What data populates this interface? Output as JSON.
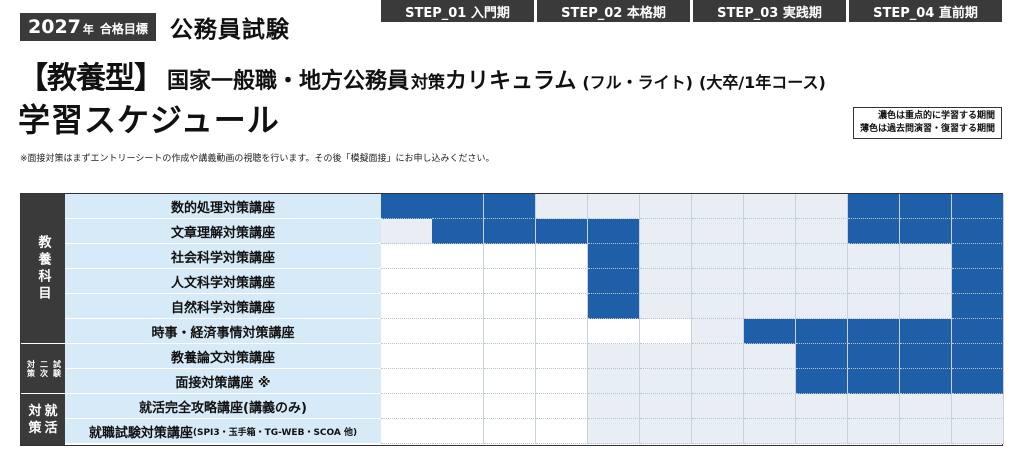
{
  "header": {
    "year": "2027",
    "year_suffix": "年",
    "pass_target": "合格目標",
    "exam_title": "公務員試験",
    "type_label": "【教養型】",
    "curriculum_main": "国家一般職・地方公務員",
    "curriculum_mid": "対策",
    "curriculum_end": "カリキュラム",
    "variant": "(フル・ライト)",
    "course_scope": "(大卒/1年コース)",
    "schedule_title": "学習スケジュール"
  },
  "legend": {
    "dark_text": "濃色は重点的に学習する期間",
    "light_text": "薄色は過去問演習・復習する期間"
  },
  "note": "※面接対策はまずエントリーシートの作成や講義動画の視聴を行います。その後「模擬面接」にお申し込みください。",
  "steps": [
    {
      "label": "STEP_01 入門期"
    },
    {
      "label": "STEP_02 本格期"
    },
    {
      "label": "STEP_03 実践期"
    },
    {
      "label": "STEP_04 直前期"
    }
  ],
  "categories": [
    {
      "main": "教養科目",
      "sub": ""
    },
    {
      "main": "二次試験",
      "sub": "対策"
    },
    {
      "main": "対就策活",
      "sub": ""
    }
  ],
  "category_labels": {
    "liberal": "教養科目",
    "second_a": "二次",
    "second_b": "試験",
    "second_side": "対策",
    "job_a": "対",
    "job_b": "就",
    "job_c": "策",
    "job_d": "活"
  },
  "courses": [
    {
      "name": "数的処理対策講座",
      "sub": "",
      "cells": [
        2,
        2,
        2,
        1,
        1,
        1,
        1,
        1,
        1,
        2,
        2,
        2
      ]
    },
    {
      "name": "文章理解対策講座",
      "sub": "",
      "cells": [
        1,
        2,
        2,
        2,
        2,
        1,
        1,
        1,
        1,
        2,
        2,
        2
      ]
    },
    {
      "name": "社会科学対策講座",
      "sub": "",
      "cells": [
        0,
        0,
        0,
        0,
        2,
        1,
        1,
        1,
        1,
        1,
        1,
        2
      ]
    },
    {
      "name": "人文科学対策講座",
      "sub": "",
      "cells": [
        0,
        0,
        0,
        0,
        2,
        1,
        1,
        1,
        1,
        1,
        1,
        2
      ]
    },
    {
      "name": "自然科学対策講座",
      "sub": "",
      "cells": [
        0,
        0,
        0,
        0,
        2,
        1,
        1,
        1,
        1,
        1,
        1,
        2
      ]
    },
    {
      "name": "時事・経済事情対策講座",
      "sub": "",
      "cells": [
        0,
        0,
        0,
        0,
        0,
        0,
        1,
        2,
        2,
        2,
        2,
        2
      ]
    },
    {
      "name": "教養論文対策講座",
      "sub": "",
      "cells": [
        0,
        0,
        0,
        0,
        1,
        1,
        1,
        1,
        2,
        2,
        2,
        2
      ]
    },
    {
      "name": "面接対策講座 ※",
      "sub": "",
      "cells": [
        0,
        0,
        0,
        0,
        1,
        1,
        1,
        1,
        2,
        2,
        2,
        2
      ]
    },
    {
      "name": "就活完全攻略講座(講義のみ)",
      "sub": "",
      "cells": [
        0,
        0,
        0,
        0,
        1,
        1,
        1,
        1,
        1,
        1,
        1,
        1
      ]
    },
    {
      "name": "就職試験対策講座",
      "sub": "(SPI3・玉手箱・TG-WEB・SCOA 他)",
      "cells": [
        0,
        0,
        0,
        0,
        1,
        1,
        1,
        1,
        1,
        1,
        1,
        1
      ]
    }
  ],
  "colors": {
    "dark": "#1f5ea8",
    "light": "#e9eef4",
    "header_bg": "#3a3a3a",
    "course_bg": "#d6eaf8"
  }
}
